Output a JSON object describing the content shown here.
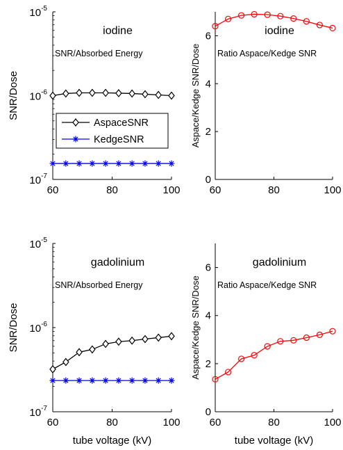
{
  "figure": {
    "xlabel": "tube voltage (kV)"
  },
  "chart_data": [
    {
      "type": "line",
      "title": "iodine",
      "subtitle": "SNR/Absorbed Energy",
      "ylabel": "SNR/Dose",
      "xlabel": "",
      "yscale": "log",
      "xlim": [
        60,
        100
      ],
      "ylim": [
        1e-07,
        1e-05
      ],
      "xticks": [
        "60",
        "80",
        "100"
      ],
      "yticks": [
        {
          "base": "10",
          "exp": "-7",
          "value": 1e-07
        },
        {
          "base": "10",
          "exp": "-6",
          "value": 1e-06
        },
        {
          "base": "10",
          "exp": "-5",
          "value": 1e-05
        }
      ],
      "legend": {
        "position": "middle-left",
        "entries": [
          "AspaceSNR",
          "KedgeSNR"
        ]
      },
      "x": [
        60,
        64.4,
        68.9,
        73.3,
        77.8,
        82.2,
        86.7,
        91.1,
        95.6,
        100
      ],
      "series": [
        {
          "name": "AspaceSNR",
          "color": "#000000",
          "marker": "diamond",
          "values": [
            1e-06,
            1.06e-06,
            1.08e-06,
            1.08e-06,
            1.08e-06,
            1.07e-06,
            1.06e-06,
            1.04e-06,
            1.02e-06,
            1e-06
          ]
        },
        {
          "name": "KedgeSNR",
          "color": "#0000ff",
          "marker": "asterisk",
          "values": [
            1.55e-07,
            1.55e-07,
            1.55e-07,
            1.55e-07,
            1.55e-07,
            1.55e-07,
            1.55e-07,
            1.55e-07,
            1.55e-07,
            1.55e-07
          ]
        }
      ]
    },
    {
      "type": "line",
      "title": "iodine",
      "subtitle": "Ratio Aspace/Kedge SNR",
      "ylabel": "Aspace/Kedge SNR/Dose",
      "xlabel": "",
      "yscale": "linear",
      "xlim": [
        60,
        100
      ],
      "ylim": [
        0,
        7
      ],
      "xticks": [
        "60",
        "80",
        "100"
      ],
      "yticks": [
        "0",
        "2",
        "4",
        "6"
      ],
      "x": [
        60,
        64.4,
        68.9,
        73.3,
        77.8,
        82.2,
        86.7,
        91.1,
        95.6,
        100
      ],
      "series": [
        {
          "color": "#ff0000",
          "marker": "circle",
          "values": [
            6.4,
            6.7,
            6.85,
            6.9,
            6.88,
            6.82,
            6.72,
            6.6,
            6.45,
            6.32
          ]
        }
      ]
    },
    {
      "type": "line",
      "title": "gadolinium",
      "subtitle": "SNR/Absorbed Energy",
      "ylabel": "SNR/Dose",
      "xlabel": "tube voltage (kV)",
      "yscale": "log",
      "xlim": [
        60,
        100
      ],
      "ylim": [
        1e-07,
        1e-05
      ],
      "xticks": [
        "60",
        "80",
        "100"
      ],
      "yticks": [
        {
          "base": "10",
          "exp": "-7",
          "value": 1e-07
        },
        {
          "base": "10",
          "exp": "-6",
          "value": 1e-06
        },
        {
          "base": "10",
          "exp": "-5",
          "value": 1e-05
        }
      ],
      "x": [
        60,
        64.4,
        68.9,
        73.3,
        77.8,
        82.2,
        86.7,
        91.1,
        95.6,
        100
      ],
      "series": [
        {
          "name": "AspaceSNR",
          "color": "#000000",
          "marker": "diamond",
          "values": [
            3.2e-07,
            3.9e-07,
            5.1e-07,
            5.5e-07,
            6.4e-07,
            6.8e-07,
            7e-07,
            7.3e-07,
            7.6e-07,
            7.9e-07
          ]
        },
        {
          "name": "KedgeSNR",
          "color": "#0000ff",
          "marker": "asterisk",
          "values": [
            2.35e-07,
            2.35e-07,
            2.35e-07,
            2.35e-07,
            2.35e-07,
            2.35e-07,
            2.35e-07,
            2.35e-07,
            2.35e-07,
            2.35e-07
          ]
        }
      ]
    },
    {
      "type": "line",
      "title": "gadolinium",
      "subtitle": "Ratio Aspace/Kedge SNR",
      "ylabel": "Aspace/Kedge SNR/Dose",
      "xlabel": "tube voltage (kV)",
      "yscale": "linear",
      "xlim": [
        60,
        100
      ],
      "ylim": [
        0,
        7
      ],
      "xticks": [
        "60",
        "80",
        "100"
      ],
      "yticks": [
        "0",
        "2",
        "4",
        "6"
      ],
      "x": [
        60,
        64.4,
        68.9,
        73.3,
        77.8,
        82.2,
        86.7,
        91.1,
        95.6,
        100
      ],
      "series": [
        {
          "color": "#ff0000",
          "marker": "circle",
          "values": [
            1.35,
            1.65,
            2.2,
            2.35,
            2.72,
            2.93,
            2.97,
            3.08,
            3.2,
            3.35
          ]
        }
      ]
    }
  ]
}
